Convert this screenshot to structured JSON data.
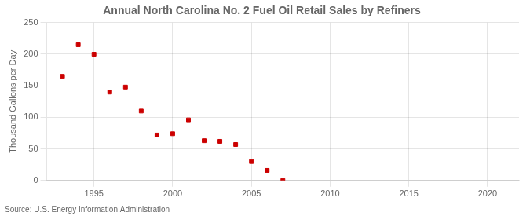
{
  "chart_data": {
    "type": "scatter",
    "title": "Annual North Carolina No. 2 Fuel Oil Retail Sales by Refiners",
    "ylabel": "Thousand Gallons per Day",
    "source": "Source: U.S. Energy Information Administration",
    "x": [
      1993,
      1994,
      1995,
      1996,
      1997,
      1998,
      1999,
      2000,
      2001,
      2002,
      2003,
      2004,
      2005,
      2006,
      2007
    ],
    "values": [
      165,
      215,
      200,
      140,
      148,
      110,
      72,
      74,
      96,
      63,
      62,
      57,
      30,
      16,
      0
    ],
    "color": "#cc0000",
    "marker": "square",
    "xlim": [
      1992,
      2022
    ],
    "xticks": [
      1995,
      2000,
      2005,
      2010,
      2015,
      2020
    ],
    "ylim": [
      0,
      250
    ],
    "yticks": [
      0,
      50,
      100,
      150,
      200,
      250
    ],
    "grid": true
  }
}
